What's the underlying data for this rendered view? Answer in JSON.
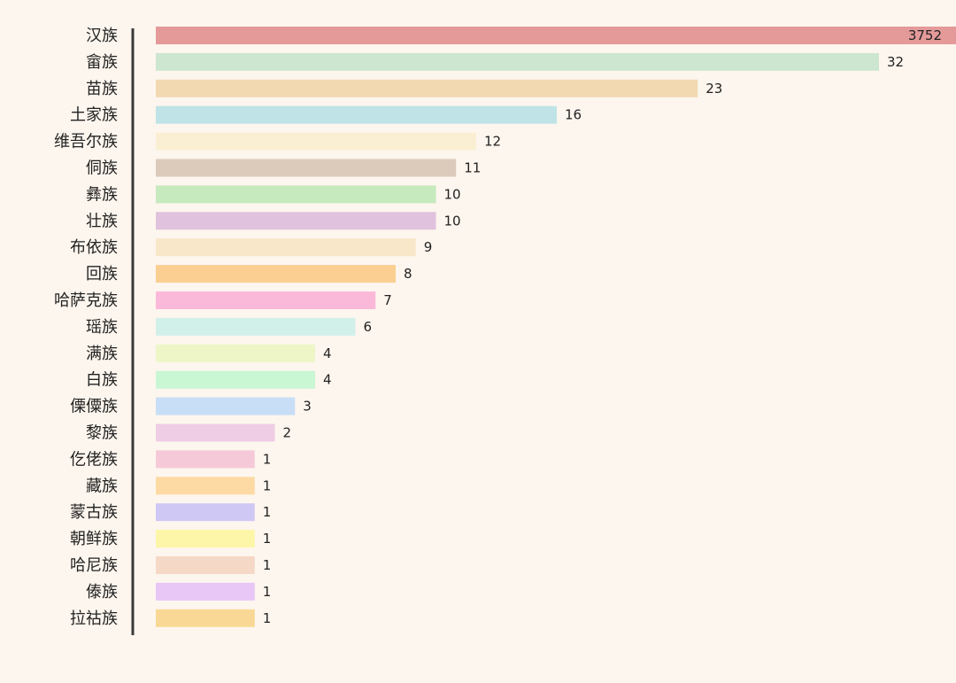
{
  "chart_data": {
    "type": "bar",
    "orientation": "horizontal",
    "scale": "nonlinear (large leading value truncated)",
    "grid": false,
    "legend": "none",
    "categories": [
      "汉族",
      "畲族",
      "苗族",
      "土家族",
      "维吾尔族",
      "侗族",
      "彝族",
      "壮族",
      "布依族",
      "回族",
      "哈萨克族",
      "瑶族",
      "满族",
      "白族",
      "傈僳族",
      "黎族",
      "仡佬族",
      "藏族",
      "蒙古族",
      "朝鲜族",
      "哈尼族",
      "傣族",
      "拉祜族"
    ],
    "values": [
      3752,
      32,
      23,
      16,
      12,
      11,
      10,
      10,
      9,
      8,
      7,
      6,
      4,
      4,
      3,
      2,
      1,
      1,
      1,
      1,
      1,
      1,
      1
    ],
    "colors": [
      "#e39a99",
      "#cde6cf",
      "#f2d9b2",
      "#bfe3e6",
      "#fbefd3",
      "#dccbbb",
      "#c6e9bd",
      "#e0c2de",
      "#f8e7c9",
      "#fbcf92",
      "#fbb9da",
      "#d2f0ea",
      "#eef6c8",
      "#c9f6d3",
      "#c8def6",
      "#efcde4",
      "#f6c9d8",
      "#fdd9a3",
      "#d0c8f4",
      "#fdf5a8",
      "#f6d8c6",
      "#e8c6f6",
      "#f8d894"
    ]
  }
}
